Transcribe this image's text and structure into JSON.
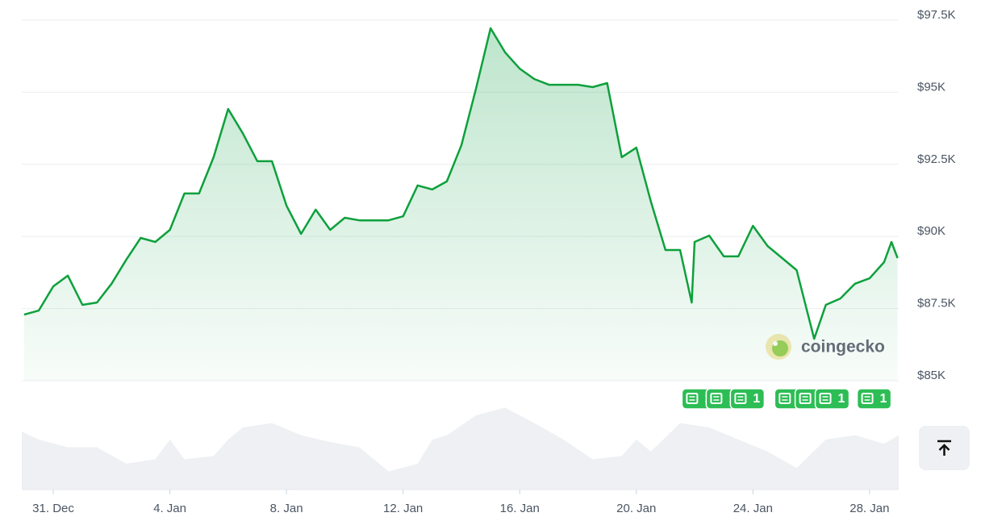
{
  "chart_data": [
    {
      "type": "line",
      "color": "#0ea03c",
      "x": [
        -1.0,
        -0.5,
        0,
        0.5,
        1,
        1.5,
        2,
        2.5,
        3,
        3.5,
        4,
        4.5,
        5,
        5.5,
        6,
        6.5,
        7,
        7.5,
        8,
        8.5,
        9,
        9.5,
        10,
        10.5,
        11,
        11.5,
        12,
        12.5,
        13,
        13.5,
        14,
        14.5,
        15,
        15.5,
        16,
        16.5,
        17,
        17.5,
        18,
        18.5,
        19,
        19.5,
        20,
        20.5,
        21,
        21.5,
        21.9,
        22,
        22.5,
        23,
        23.5,
        24,
        24.5,
        25,
        25.5,
        26.1,
        26.5,
        27,
        27.5,
        28,
        28.5,
        28.75,
        28.96
      ],
      "values": [
        87290,
        87430,
        88270,
        88640,
        87630,
        87710,
        88360,
        89190,
        89950,
        89810,
        90230,
        91490,
        91490,
        92750,
        94420,
        93580,
        92610,
        92610,
        91070,
        90090,
        90930,
        90230,
        90650,
        90560,
        90560,
        90560,
        90700,
        91770,
        91630,
        91910,
        93160,
        95120,
        97220,
        96380,
        95820,
        95460,
        95260,
        95260,
        95260,
        95180,
        95320,
        92750,
        93080,
        91210,
        89530,
        89530,
        87710,
        89810,
        90030,
        89310,
        89310,
        90370,
        89670,
        89250,
        88830,
        86450,
        87630,
        87850,
        88360,
        88550,
        89110,
        89810,
        89250
      ],
      "xlim": [
        -1.08,
        29.0
      ],
      "xticks": [
        {
          "value": 0,
          "label": "31. Dec"
        },
        {
          "value": 4,
          "label": "4. Jan"
        },
        {
          "value": 8,
          "label": "8. Jan"
        },
        {
          "value": 12,
          "label": "12. Jan"
        },
        {
          "value": 16,
          "label": "16. Jan"
        },
        {
          "value": 20,
          "label": "20. Jan"
        },
        {
          "value": 24,
          "label": "24. Jan"
        },
        {
          "value": 28,
          "label": "28. Jan"
        }
      ],
      "ylim": [
        85000,
        97500
      ],
      "yticks": [
        {
          "value": 97500,
          "label": "$97.5K"
        },
        {
          "value": 95000,
          "label": "$95K"
        },
        {
          "value": 92500,
          "label": "$92.5K"
        },
        {
          "value": 90000,
          "label": "$90K"
        },
        {
          "value": 87500,
          "label": "$87.5K"
        },
        {
          "value": 85000,
          "label": "$85K"
        }
      ],
      "grid": true,
      "watermark": "coingecko",
      "news_markers": [
        {
          "x": 22.12,
          "label": "1"
        },
        {
          "x": 22.95,
          "label": "1"
        },
        {
          "x": 23.78,
          "label": "1"
        },
        {
          "x": 25.3,
          "label": "1"
        },
        {
          "x": 26.0,
          "label": "1"
        },
        {
          "x": 26.69,
          "label": "1"
        },
        {
          "x": 28.13,
          "label": "1"
        }
      ]
    },
    {
      "type": "area",
      "color": "#eef0f3",
      "x": [
        -1.08,
        -0.5,
        0.5,
        1.5,
        2.5,
        3.5,
        4,
        4.5,
        5.5,
        6,
        6.5,
        7.5,
        8.5,
        9.5,
        10.5,
        11.5,
        12.5,
        13,
        13.5,
        14.5,
        15.5,
        16.5,
        17.5,
        18.5,
        19.5,
        20,
        20.5,
        21.5,
        22.5,
        23.5,
        24.5,
        25.5,
        26.5,
        27.5,
        28.5,
        29.0
      ],
      "values": [
        67,
        58,
        49,
        49,
        30,
        35,
        58,
        35,
        39,
        58,
        72,
        77,
        63,
        55,
        49,
        21,
        30,
        58,
        63,
        86,
        95,
        77,
        58,
        35,
        39,
        58,
        44,
        77,
        72,
        58,
        44,
        25,
        58,
        63,
        53,
        63
      ],
      "ylim": [
        0,
        100
      ]
    }
  ]
}
